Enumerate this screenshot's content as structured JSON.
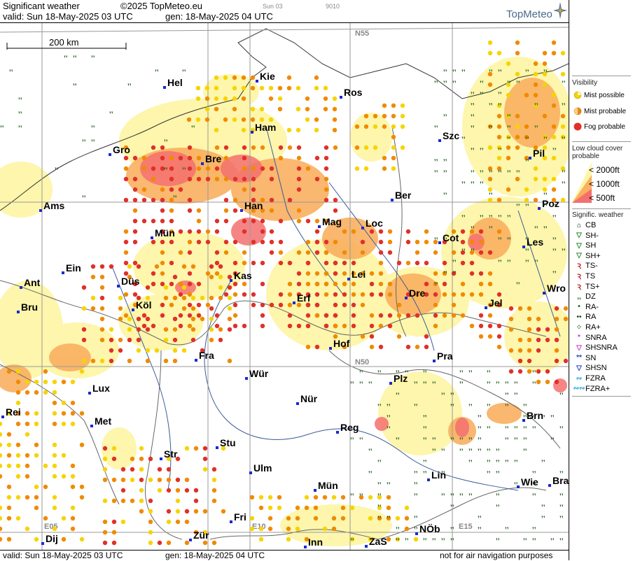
{
  "header": {
    "title": "Significant weather",
    "copyright": "©2025 TopMeteo.eu",
    "run_day": "Sun 03",
    "code": "9010",
    "valid": "valid:  Sun  18-May-2025  03 UTC",
    "gen": "gen: 18-May-2025 04 UTC",
    "logo": "TopMeteo"
  },
  "footer": {
    "valid": "valid:  Sun  18-May-2025  03 UTC",
    "gen": "gen: 18-May-2025 04 UTC",
    "disclaimer": "not for air navigation purposes"
  },
  "scale": {
    "label": "200 km"
  },
  "grid_labels": {
    "n55": "N55",
    "n50": "N50",
    "e05": "E05",
    "e10": "E10",
    "e15": "E15"
  },
  "cities": [
    {
      "name": "Hel"
    },
    {
      "name": "Kie"
    },
    {
      "name": "Ros"
    },
    {
      "name": "Ham"
    },
    {
      "name": "Szc"
    },
    {
      "name": "Gro"
    },
    {
      "name": "Bre"
    },
    {
      "name": "Pil"
    },
    {
      "name": "Ber"
    },
    {
      "name": "Ams"
    },
    {
      "name": "Han"
    },
    {
      "name": "Poz"
    },
    {
      "name": "Mag"
    },
    {
      "name": "Loc"
    },
    {
      "name": "Mün"
    },
    {
      "name": "Cot"
    },
    {
      "name": "Les"
    },
    {
      "name": "Ein"
    },
    {
      "name": "Kas"
    },
    {
      "name": "Lei"
    },
    {
      "name": "Ant"
    },
    {
      "name": "Düs"
    },
    {
      "name": "Wro"
    },
    {
      "name": "Bru"
    },
    {
      "name": "Köl"
    },
    {
      "name": "Erf"
    },
    {
      "name": "Dre"
    },
    {
      "name": "Jel"
    },
    {
      "name": "Hof"
    },
    {
      "name": "Fra"
    },
    {
      "name": "Pra"
    },
    {
      "name": "Wür"
    },
    {
      "name": "Plz"
    },
    {
      "name": "Lux"
    },
    {
      "name": "Nür"
    },
    {
      "name": "Rei"
    },
    {
      "name": "Met"
    },
    {
      "name": "Reg"
    },
    {
      "name": "Brn"
    },
    {
      "name": "Stu"
    },
    {
      "name": "Str"
    },
    {
      "name": "Ulm"
    },
    {
      "name": "Lin"
    },
    {
      "name": "Mün"
    },
    {
      "name": "Wie"
    },
    {
      "name": "Bra"
    },
    {
      "name": "Fri"
    },
    {
      "name": "NÖb"
    },
    {
      "name": "Dij"
    },
    {
      "name": "Zür"
    },
    {
      "name": "Inn"
    },
    {
      "name": "ZaS"
    }
  ],
  "legend": {
    "visibility_title": "Visibility",
    "mist_possible": "Mist possible",
    "mist_probable": "Mist probable",
    "fog_probable": "Fog probable",
    "lowcloud_title_1": "Low cloud cover",
    "lowcloud_title_2": "probable",
    "lc_2000": "< 2000ft",
    "lc_1000": "< 1000ft",
    "lc_500": "<   500ft",
    "sigwx_title": "Signific. weather",
    "items": [
      "CB",
      "SH-",
      "SH",
      "SH+",
      "TS-",
      "TS",
      "TS+",
      "DZ",
      "RA-",
      "RA",
      "RA+",
      "SNRA",
      "SHSNRA",
      "SN",
      "SHSN",
      "FZRA",
      "FZRA+"
    ],
    "colors": {
      "mist_possible": "#f5d400",
      "mist_probable": "#f08a00",
      "fog_probable": "#e0302a",
      "lc_2000": "#fdf6a8",
      "lc_1000": "#f9b060",
      "lc_500": "#f47070"
    }
  }
}
